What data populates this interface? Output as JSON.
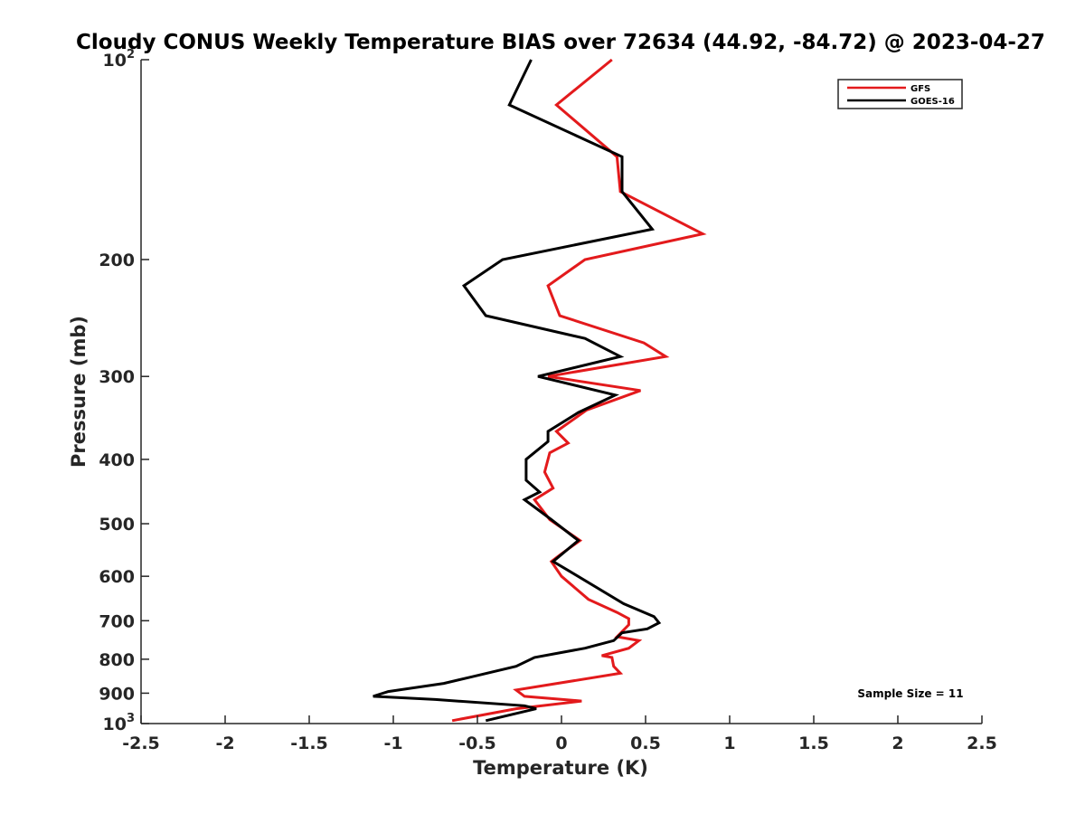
{
  "chart_data": {
    "type": "line",
    "title": "Cloudy CONUS Weekly Temperature BIAS over 72634 (44.92, -84.72) @ 2023-04-27",
    "xlabel": "Temperature (K)",
    "ylabel": "Pressure (mb)",
    "xlim": [
      -2.5,
      2.5
    ],
    "ylim": [
      1000,
      100
    ],
    "y_scale": "log",
    "y_reversed": true,
    "grid": false,
    "legend_position": "top-right",
    "x_ticks": [
      -2.5,
      -2,
      -1.5,
      -1,
      -0.5,
      0,
      0.5,
      1,
      1.5,
      2,
      2.5
    ],
    "x_tick_labels": [
      "-2.5",
      "-2",
      "-1.5",
      "-1",
      "-0.5",
      "0",
      "0.5",
      "1",
      "1.5",
      "2",
      "2.5"
    ],
    "y_ticks": [
      {
        "value": 100,
        "base": "10",
        "exp": "2",
        "label": ""
      },
      {
        "value": 200,
        "label": "200"
      },
      {
        "value": 300,
        "label": "300"
      },
      {
        "value": 400,
        "label": "400"
      },
      {
        "value": 500,
        "label": "500"
      },
      {
        "value": 600,
        "label": "600"
      },
      {
        "value": 700,
        "label": "700"
      },
      {
        "value": 800,
        "label": "800"
      },
      {
        "value": 900,
        "label": "900"
      },
      {
        "value": 1000,
        "base": "10",
        "exp": "3",
        "label": ""
      }
    ],
    "annotation": "Sample Size = 11",
    "series": [
      {
        "name": "GFS",
        "color": "#e31a1c",
        "points": [
          [
            0.3,
            100
          ],
          [
            -0.03,
            117
          ],
          [
            0.33,
            140
          ],
          [
            0.35,
            158
          ],
          [
            0.84,
            183
          ],
          [
            0.14,
            200
          ],
          [
            -0.08,
            219
          ],
          [
            -0.01,
            243
          ],
          [
            0.49,
            267
          ],
          [
            0.62,
            280
          ],
          [
            -0.08,
            300
          ],
          [
            0.47,
            315
          ],
          [
            0.15,
            337
          ],
          [
            -0.03,
            363
          ],
          [
            0.04,
            378
          ],
          [
            -0.07,
            391
          ],
          [
            -0.1,
            418
          ],
          [
            -0.05,
            442
          ],
          [
            -0.16,
            460
          ],
          [
            -0.07,
            493
          ],
          [
            0.11,
            530
          ],
          [
            0.0,
            555
          ],
          [
            -0.06,
            570
          ],
          [
            0.0,
            600
          ],
          [
            0.16,
            650
          ],
          [
            0.33,
            680
          ],
          [
            0.4,
            695
          ],
          [
            0.4,
            710
          ],
          [
            0.33,
            740
          ],
          [
            0.46,
            750
          ],
          [
            0.4,
            770
          ],
          [
            0.24,
            790
          ],
          [
            0.3,
            795
          ],
          [
            0.31,
            820
          ],
          [
            0.35,
            840
          ],
          [
            -0.27,
            890
          ],
          [
            -0.22,
            910
          ],
          [
            0.12,
            925
          ],
          [
            -0.27,
            950
          ],
          [
            -0.65,
            990
          ]
        ]
      },
      {
        "name": "GOES-16",
        "color": "#000000",
        "points": [
          [
            -0.18,
            100
          ],
          [
            -0.31,
            117
          ],
          [
            0.36,
            140
          ],
          [
            0.36,
            158
          ],
          [
            0.54,
            180
          ],
          [
            -0.35,
            200
          ],
          [
            -0.58,
            219
          ],
          [
            -0.45,
            243
          ],
          [
            0.14,
            263
          ],
          [
            0.35,
            280
          ],
          [
            -0.14,
            300
          ],
          [
            0.32,
            320
          ],
          [
            0.1,
            340
          ],
          [
            -0.08,
            363
          ],
          [
            -0.08,
            376
          ],
          [
            -0.21,
            400
          ],
          [
            -0.21,
            430
          ],
          [
            -0.13,
            448
          ],
          [
            -0.22,
            460
          ],
          [
            -0.06,
            493
          ],
          [
            0.1,
            530
          ],
          [
            -0.05,
            570
          ],
          [
            0.05,
            590
          ],
          [
            0.37,
            660
          ],
          [
            0.55,
            690
          ],
          [
            0.58,
            705
          ],
          [
            0.51,
            720
          ],
          [
            0.36,
            730
          ],
          [
            0.31,
            750
          ],
          [
            0.14,
            770
          ],
          [
            -0.16,
            795
          ],
          [
            -0.27,
            820
          ],
          [
            -0.53,
            850
          ],
          [
            -0.7,
            870
          ],
          [
            -1.03,
            895
          ],
          [
            -1.12,
            910
          ],
          [
            -0.75,
            920
          ],
          [
            -0.22,
            940
          ],
          [
            -0.15,
            950
          ],
          [
            -0.45,
            990
          ]
        ]
      }
    ]
  }
}
